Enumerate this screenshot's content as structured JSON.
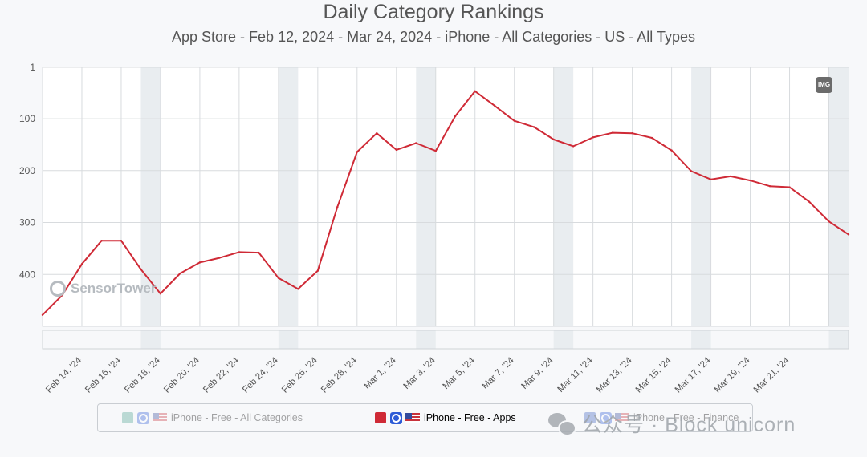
{
  "title": "Daily Category Rankings",
  "subtitle": "App Store - Feb 12, 2024 - Mar 24, 2024 - iPhone - All Categories - US - All Types",
  "img_button": "IMG",
  "logo_text": "SensorTower",
  "watermark_text": "公众号 · Block unicorn",
  "legend": [
    {
      "label": "iPhone - Free - All Categories",
      "color": "#4aa28f",
      "active": false
    },
    {
      "label": "iPhone - Free - Apps",
      "color": "#cf2a36",
      "active": true
    },
    {
      "label": "iPhone - Free - Finance",
      "color": "#3b5fc0",
      "active": false
    }
  ],
  "chart_data": {
    "type": "line",
    "x": [
      "Feb 12, '24",
      "Feb 13, '24",
      "Feb 14, '24",
      "Feb 15, '24",
      "Feb 16, '24",
      "Feb 17, '24",
      "Feb 18, '24",
      "Feb 19, '24",
      "Feb 20, '24",
      "Feb 21, '24",
      "Feb 22, '24",
      "Feb 23, '24",
      "Feb 24, '24",
      "Feb 25, '24",
      "Feb 26, '24",
      "Feb 27, '24",
      "Feb 28, '24",
      "Feb 29, '24",
      "Mar 1, '24",
      "Mar 2, '24",
      "Mar 3, '24",
      "Mar 4, '24",
      "Mar 5, '24",
      "Mar 6, '24",
      "Mar 7, '24",
      "Mar 8, '24",
      "Mar 9, '24",
      "Mar 10, '24",
      "Mar 11, '24",
      "Mar 12, '24",
      "Mar 13, '24",
      "Mar 14, '24",
      "Mar 15, '24",
      "Mar 16, '24",
      "Mar 17, '24",
      "Mar 18, '24",
      "Mar 19, '24",
      "Mar 20, '24",
      "Mar 21, '24",
      "Mar 22, '24",
      "Mar 23, '24",
      "Mar 24, '24"
    ],
    "x_tick_labels": [
      "Feb 14, '24",
      "Feb 16, '24",
      "Feb 18, '24",
      "Feb 20, '24",
      "Feb 22, '24",
      "Feb 24, '24",
      "Feb 26, '24",
      "Feb 28, '24",
      "Mar 1, '24",
      "Mar 3, '24",
      "Mar 5, '24",
      "Mar 7, '24",
      "Mar 9, '24",
      "Mar 11, '24",
      "Mar 13, '24",
      "Mar 15, '24",
      "Mar 17, '24",
      "Mar 19, '24",
      "Mar 21, '24"
    ],
    "y_tick_labels": [
      "1",
      "100",
      "200",
      "300",
      "400"
    ],
    "y_ticks": [
      1,
      100,
      200,
      300,
      400
    ],
    "ylim": [
      500,
      1
    ],
    "y_reversed": true,
    "grid": true,
    "weekend_shading": true,
    "series": [
      {
        "name": "iPhone - Free - Apps",
        "color": "#cf2a36",
        "values": [
          478,
          440,
          380,
          335,
          335,
          390,
          437,
          398,
          377,
          368,
          357,
          358,
          407,
          428,
          393,
          270,
          164,
          128,
          160,
          147,
          162,
          95,
          47,
          75,
          104,
          116,
          140,
          153,
          136,
          127,
          128,
          137,
          161,
          201,
          217,
          211,
          219,
          230,
          232,
          260,
          298,
          323
        ]
      }
    ]
  }
}
